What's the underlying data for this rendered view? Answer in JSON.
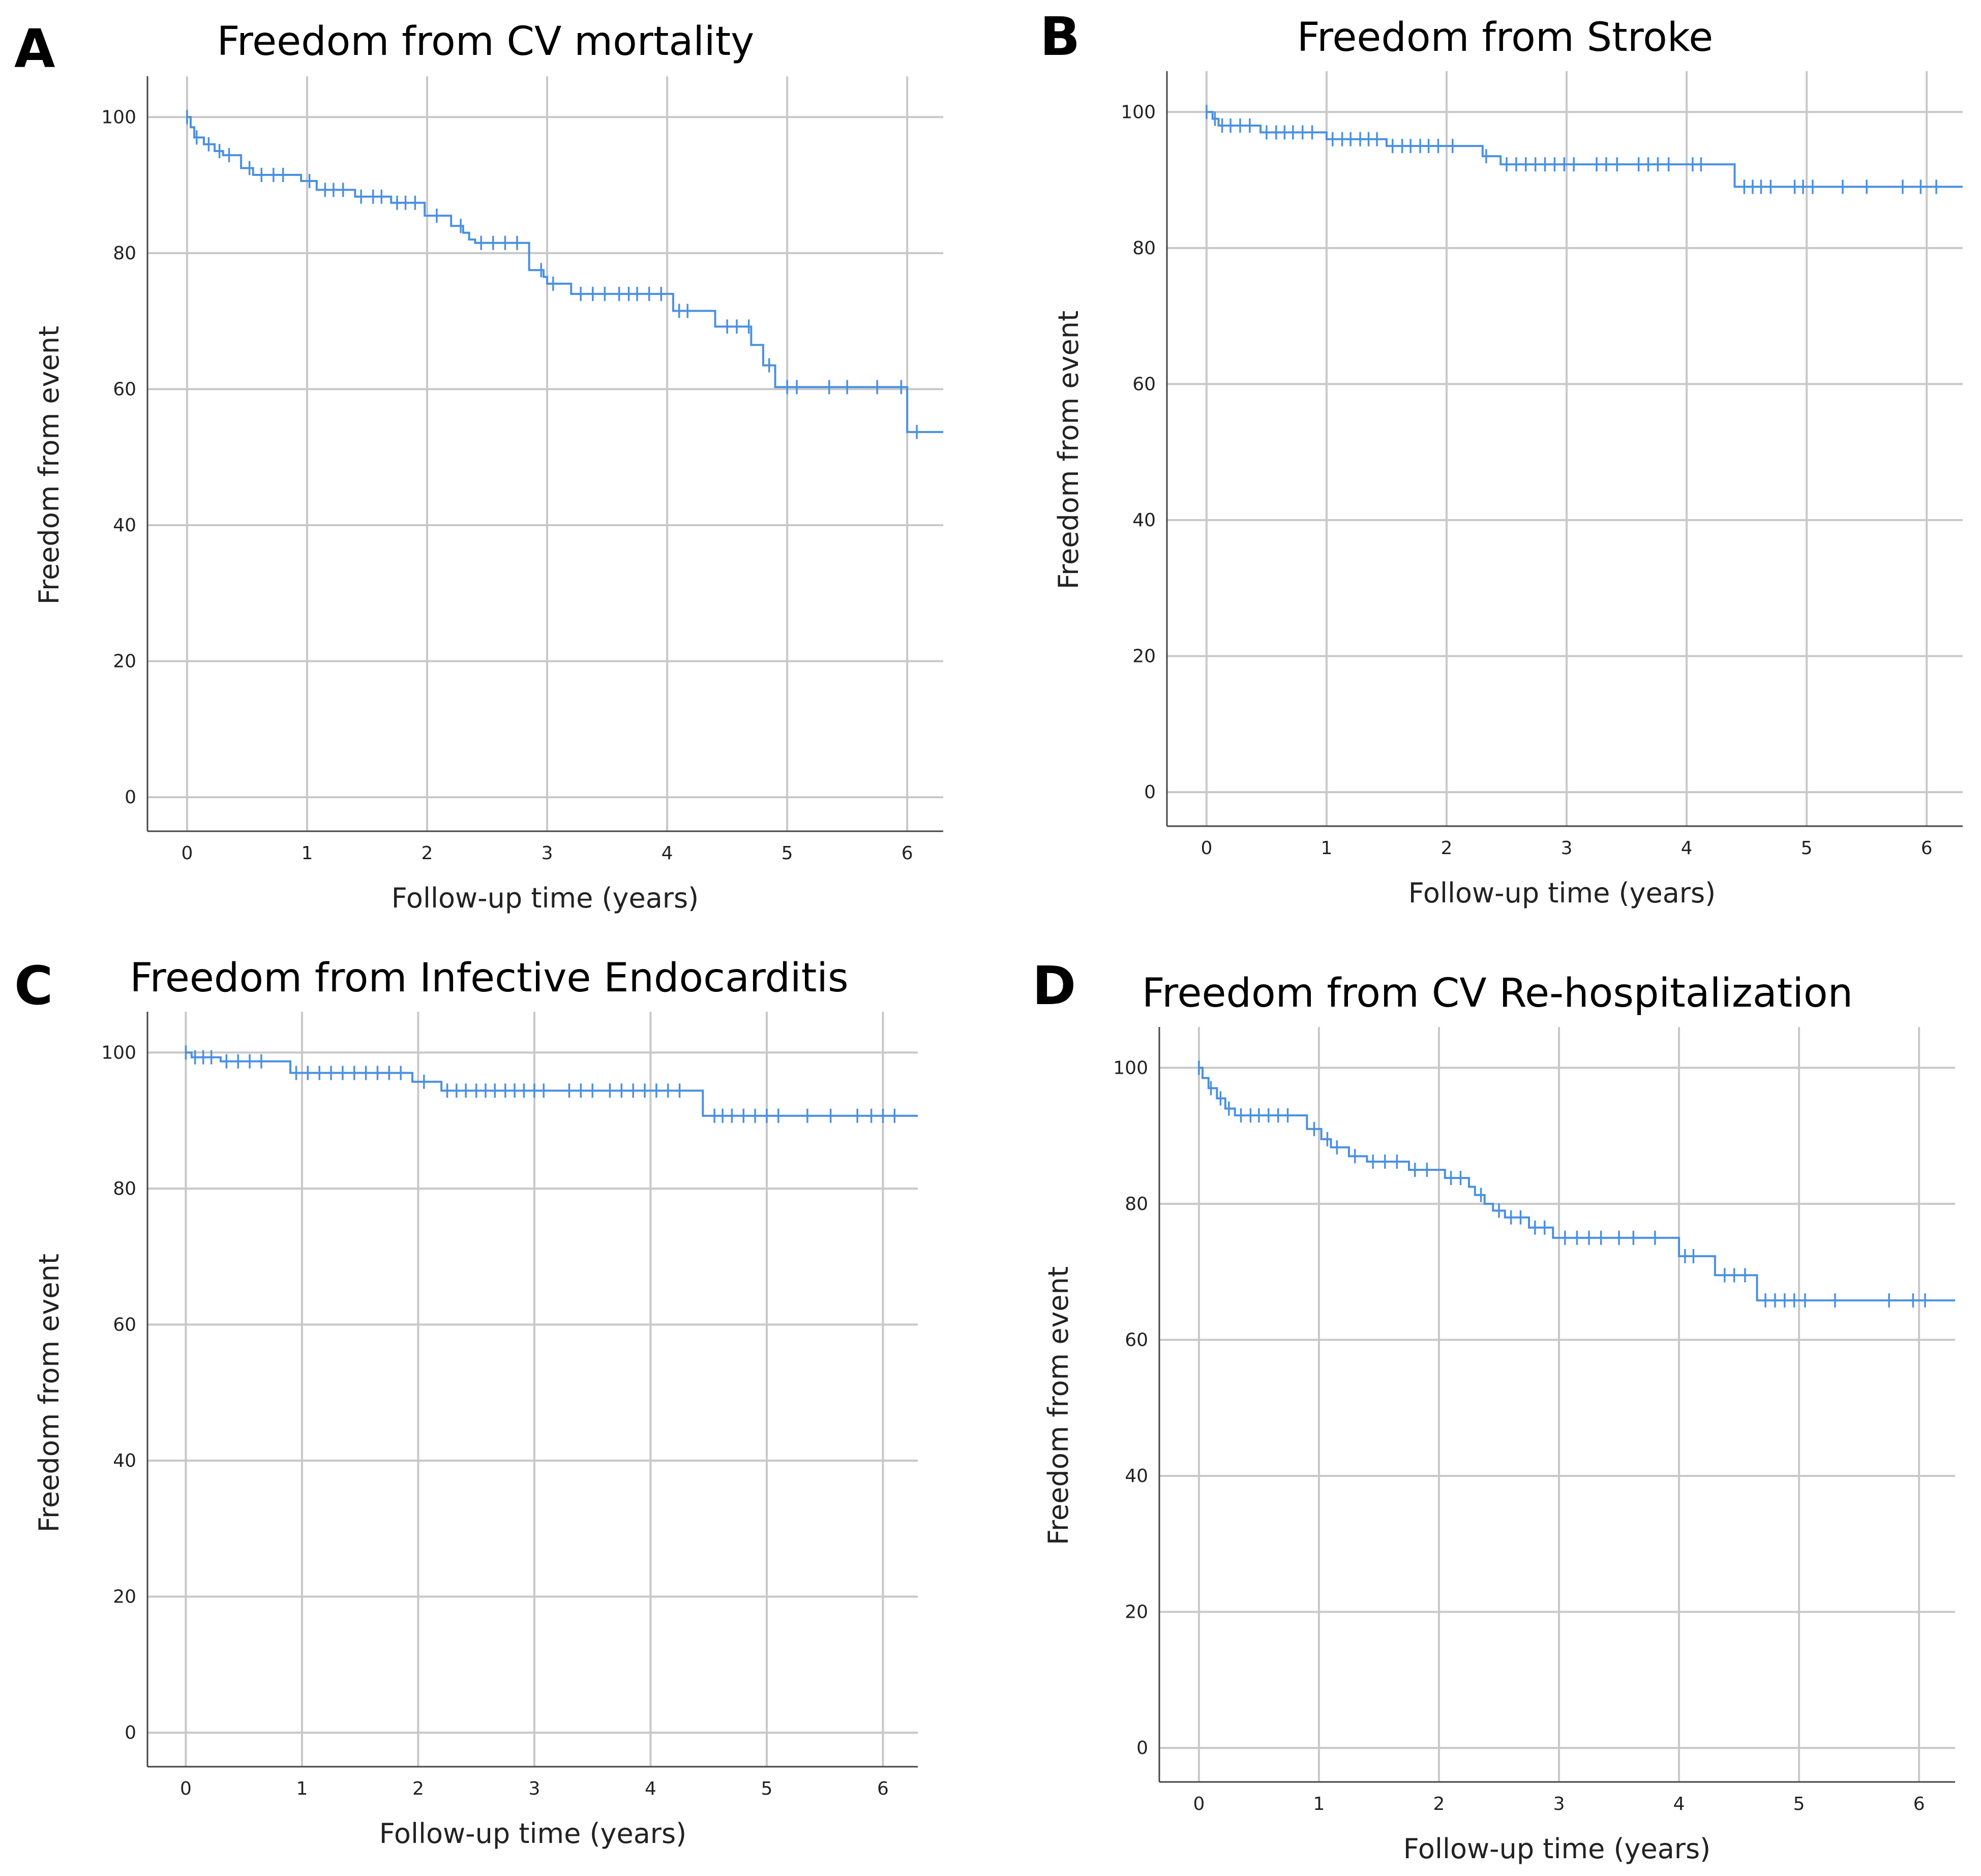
{
  "chart_data": [
    {
      "panel_letter": "A",
      "type": "line",
      "subtype": "kaplan-meier",
      "title": "Freedom from CV mortality",
      "xlabel": "Follow-up time (years)",
      "ylabel": "Freedom from event",
      "x_ticks": [
        "0",
        "1",
        "2",
        "3",
        "4",
        "5",
        "6"
      ],
      "y_ticks": [
        "0",
        "20",
        "40",
        "60",
        "80",
        "100"
      ],
      "xlim": [
        -0.33,
        6.3
      ],
      "ylim": [
        -5,
        106
      ],
      "grid": true,
      "line_color": "#4a90e2",
      "steps": [
        [
          0,
          100
        ],
        [
          0.03,
          98.5
        ],
        [
          0.06,
          97
        ],
        [
          0.14,
          96
        ],
        [
          0.23,
          95
        ],
        [
          0.3,
          94.4
        ],
        [
          0.45,
          92.5
        ],
        [
          0.55,
          91.5
        ],
        [
          0.95,
          90.6
        ],
        [
          1.08,
          89.3
        ],
        [
          1.4,
          88.3
        ],
        [
          1.7,
          87.4
        ],
        [
          1.98,
          85.5
        ],
        [
          2.2,
          84
        ],
        [
          2.3,
          83
        ],
        [
          2.35,
          82
        ],
        [
          2.4,
          81.5
        ],
        [
          2.85,
          77.5
        ],
        [
          2.97,
          76.5
        ],
        [
          3.0,
          75.5
        ],
        [
          3.2,
          74
        ],
        [
          4.05,
          71.5
        ],
        [
          4.4,
          69.2
        ],
        [
          4.7,
          66.5
        ],
        [
          4.8,
          63.5
        ],
        [
          4.9,
          60.3
        ],
        [
          6.0,
          53.7
        ]
      ],
      "x_max": 6.3,
      "censors": [
        [
          0,
          100
        ],
        [
          0.08,
          97
        ],
        [
          0.18,
          96
        ],
        [
          0.27,
          95
        ],
        [
          0.35,
          94.4
        ],
        [
          0.52,
          92.5
        ],
        [
          0.62,
          91.5
        ],
        [
          0.72,
          91.5
        ],
        [
          0.8,
          91.5
        ],
        [
          1.02,
          90.6
        ],
        [
          1.15,
          89.3
        ],
        [
          1.22,
          89.3
        ],
        [
          1.3,
          89.3
        ],
        [
          1.45,
          88.3
        ],
        [
          1.55,
          88.3
        ],
        [
          1.62,
          88.3
        ],
        [
          1.75,
          87.4
        ],
        [
          1.82,
          87.4
        ],
        [
          1.9,
          87.4
        ],
        [
          2.08,
          85.5
        ],
        [
          2.28,
          84
        ],
        [
          2.45,
          81.5
        ],
        [
          2.55,
          81.5
        ],
        [
          2.65,
          81.5
        ],
        [
          2.75,
          81.5
        ],
        [
          2.95,
          77.5
        ],
        [
          3.05,
          75.5
        ],
        [
          3.28,
          74
        ],
        [
          3.38,
          74
        ],
        [
          3.48,
          74
        ],
        [
          3.6,
          74
        ],
        [
          3.68,
          74
        ],
        [
          3.75,
          74
        ],
        [
          3.85,
          74
        ],
        [
          3.95,
          74
        ],
        [
          4.1,
          71.5
        ],
        [
          4.17,
          71.5
        ],
        [
          4.5,
          69.2
        ],
        [
          4.58,
          69.2
        ],
        [
          4.68,
          69.2
        ],
        [
          4.85,
          63.5
        ],
        [
          5.0,
          60.3
        ],
        [
          5.08,
          60.3
        ],
        [
          5.35,
          60.3
        ],
        [
          5.5,
          60.3
        ],
        [
          5.75,
          60.3
        ],
        [
          5.95,
          60.3
        ],
        [
          6.08,
          53.7
        ]
      ]
    },
    {
      "panel_letter": "B",
      "type": "line",
      "subtype": "kaplan-meier",
      "title": "Freedom from Stroke",
      "xlabel": "Follow-up time (years)",
      "ylabel": "Freedom from event",
      "x_ticks": [
        "0",
        "1",
        "2",
        "3",
        "4",
        "5",
        "6"
      ],
      "y_ticks": [
        "0",
        "20",
        "40",
        "60",
        "80",
        "100"
      ],
      "xlim": [
        -0.33,
        6.3
      ],
      "ylim": [
        -5,
        106
      ],
      "grid": true,
      "line_color": "#4a90e2",
      "steps": [
        [
          0,
          100
        ],
        [
          0.05,
          99
        ],
        [
          0.1,
          98
        ],
        [
          0.45,
          97
        ],
        [
          1.0,
          96
        ],
        [
          1.5,
          95
        ],
        [
          2.3,
          93.5
        ],
        [
          2.45,
          92.3
        ],
        [
          4.4,
          89
        ]
      ],
      "x_max": 6.3,
      "censors": [
        [
          0,
          100
        ],
        [
          0.07,
          99
        ],
        [
          0.13,
          98
        ],
        [
          0.2,
          98
        ],
        [
          0.28,
          98
        ],
        [
          0.36,
          98
        ],
        [
          0.5,
          97
        ],
        [
          0.58,
          97
        ],
        [
          0.65,
          97
        ],
        [
          0.72,
          97
        ],
        [
          0.8,
          97
        ],
        [
          0.88,
          97
        ],
        [
          1.05,
          96
        ],
        [
          1.13,
          96
        ],
        [
          1.2,
          96
        ],
        [
          1.28,
          96
        ],
        [
          1.35,
          96
        ],
        [
          1.42,
          96
        ],
        [
          1.55,
          95
        ],
        [
          1.63,
          95
        ],
        [
          1.7,
          95
        ],
        [
          1.78,
          95
        ],
        [
          1.85,
          95
        ],
        [
          1.93,
          95
        ],
        [
          2.05,
          95
        ],
        [
          2.33,
          93.5
        ],
        [
          2.5,
          92.3
        ],
        [
          2.58,
          92.3
        ],
        [
          2.66,
          92.3
        ],
        [
          2.74,
          92.3
        ],
        [
          2.82,
          92.3
        ],
        [
          2.9,
          92.3
        ],
        [
          2.98,
          92.3
        ],
        [
          3.06,
          92.3
        ],
        [
          3.25,
          92.3
        ],
        [
          3.33,
          92.3
        ],
        [
          3.42,
          92.3
        ],
        [
          3.6,
          92.3
        ],
        [
          3.68,
          92.3
        ],
        [
          3.76,
          92.3
        ],
        [
          3.85,
          92.3
        ],
        [
          4.05,
          92.3
        ],
        [
          4.12,
          92.3
        ],
        [
          4.48,
          89
        ],
        [
          4.55,
          89
        ],
        [
          4.62,
          89
        ],
        [
          4.7,
          89
        ],
        [
          4.9,
          89
        ],
        [
          4.97,
          89
        ],
        [
          5.05,
          89
        ],
        [
          5.3,
          89
        ],
        [
          5.5,
          89
        ],
        [
          5.8,
          89
        ],
        [
          5.95,
          89
        ],
        [
          6.08,
          89
        ]
      ]
    },
    {
      "panel_letter": "C",
      "type": "line",
      "subtype": "kaplan-meier",
      "title": "Freedom from Infective Endocarditis",
      "xlabel": "Follow-up time (years)",
      "ylabel": "Freedom from event",
      "x_ticks": [
        "0",
        "1",
        "2",
        "3",
        "4",
        "5",
        "6"
      ],
      "y_ticks": [
        "0",
        "20",
        "40",
        "60",
        "80",
        "100"
      ],
      "xlim": [
        -0.33,
        6.3
      ],
      "ylim": [
        -5,
        106
      ],
      "grid": true,
      "line_color": "#4a90e2",
      "steps": [
        [
          0,
          100
        ],
        [
          0.05,
          99.3
        ],
        [
          0.3,
          98.7
        ],
        [
          0.9,
          97
        ],
        [
          1.95,
          95.7
        ],
        [
          2.2,
          94.4
        ],
        [
          4.45,
          90.7
        ]
      ],
      "x_max": 6.3,
      "censors": [
        [
          0,
          100
        ],
        [
          0.08,
          99.3
        ],
        [
          0.15,
          99.3
        ],
        [
          0.22,
          99.3
        ],
        [
          0.35,
          98.7
        ],
        [
          0.45,
          98.7
        ],
        [
          0.55,
          98.7
        ],
        [
          0.65,
          98.7
        ],
        [
          0.95,
          97
        ],
        [
          1.05,
          97
        ],
        [
          1.15,
          97
        ],
        [
          1.25,
          97
        ],
        [
          1.35,
          97
        ],
        [
          1.45,
          97
        ],
        [
          1.55,
          97
        ],
        [
          1.65,
          97
        ],
        [
          1.75,
          97
        ],
        [
          1.85,
          97
        ],
        [
          2.05,
          95.7
        ],
        [
          2.25,
          94.4
        ],
        [
          2.33,
          94.4
        ],
        [
          2.41,
          94.4
        ],
        [
          2.5,
          94.4
        ],
        [
          2.58,
          94.4
        ],
        [
          2.66,
          94.4
        ],
        [
          2.75,
          94.4
        ],
        [
          2.83,
          94.4
        ],
        [
          2.91,
          94.4
        ],
        [
          3.0,
          94.4
        ],
        [
          3.08,
          94.4
        ],
        [
          3.3,
          94.4
        ],
        [
          3.4,
          94.4
        ],
        [
          3.5,
          94.4
        ],
        [
          3.65,
          94.4
        ],
        [
          3.75,
          94.4
        ],
        [
          3.85,
          94.4
        ],
        [
          3.95,
          94.4
        ],
        [
          4.05,
          94.4
        ],
        [
          4.15,
          94.4
        ],
        [
          4.25,
          94.4
        ],
        [
          4.55,
          90.7
        ],
        [
          4.62,
          90.7
        ],
        [
          4.7,
          90.7
        ],
        [
          4.8,
          90.7
        ],
        [
          4.9,
          90.7
        ],
        [
          5.0,
          90.7
        ],
        [
          5.1,
          90.7
        ],
        [
          5.35,
          90.7
        ],
        [
          5.55,
          90.7
        ],
        [
          5.78,
          90.7
        ],
        [
          5.9,
          90.7
        ],
        [
          6.0,
          90.7
        ],
        [
          6.1,
          90.7
        ]
      ]
    },
    {
      "panel_letter": "D",
      "type": "line",
      "subtype": "kaplan-meier",
      "title": "Freedom from CV Re-hospitalization",
      "xlabel": "Follow-up time (years)",
      "ylabel": "Freedom from event",
      "x_ticks": [
        "0",
        "1",
        "2",
        "3",
        "4",
        "5",
        "6"
      ],
      "y_ticks": [
        "0",
        "20",
        "40",
        "60",
        "80",
        "100"
      ],
      "xlim": [
        -0.33,
        6.3
      ],
      "ylim": [
        -5,
        106
      ],
      "grid": true,
      "line_color": "#4a90e2",
      "steps": [
        [
          0,
          100
        ],
        [
          0.03,
          98.5
        ],
        [
          0.08,
          97
        ],
        [
          0.15,
          95.5
        ],
        [
          0.22,
          94
        ],
        [
          0.3,
          93
        ],
        [
          0.9,
          91
        ],
        [
          1.02,
          89.5
        ],
        [
          1.1,
          88.3
        ],
        [
          1.25,
          87
        ],
        [
          1.4,
          86.2
        ],
        [
          1.75,
          85
        ],
        [
          2.05,
          83.8
        ],
        [
          2.25,
          82.5
        ],
        [
          2.3,
          81.3
        ],
        [
          2.38,
          80
        ],
        [
          2.45,
          79
        ],
        [
          2.55,
          78
        ],
        [
          2.75,
          76.5
        ],
        [
          2.95,
          75
        ],
        [
          4.0,
          72.3
        ],
        [
          4.3,
          69.5
        ],
        [
          4.65,
          65.8
        ]
      ],
      "x_max": 6.3,
      "censors": [
        [
          0,
          100
        ],
        [
          0.1,
          97
        ],
        [
          0.18,
          95.5
        ],
        [
          0.25,
          94
        ],
        [
          0.35,
          93
        ],
        [
          0.43,
          93
        ],
        [
          0.5,
          93
        ],
        [
          0.58,
          93
        ],
        [
          0.66,
          93
        ],
        [
          0.74,
          93
        ],
        [
          0.96,
          91
        ],
        [
          1.07,
          89.5
        ],
        [
          1.15,
          88.3
        ],
        [
          1.3,
          87
        ],
        [
          1.45,
          86.2
        ],
        [
          1.55,
          86.2
        ],
        [
          1.65,
          86.2
        ],
        [
          1.8,
          85
        ],
        [
          1.9,
          85
        ],
        [
          2.1,
          83.8
        ],
        [
          2.18,
          83.8
        ],
        [
          2.35,
          81.3
        ],
        [
          2.5,
          79
        ],
        [
          2.6,
          78
        ],
        [
          2.68,
          78
        ],
        [
          2.8,
          76.5
        ],
        [
          2.88,
          76.5
        ],
        [
          3.05,
          75
        ],
        [
          3.15,
          75
        ],
        [
          3.25,
          75
        ],
        [
          3.35,
          75
        ],
        [
          3.5,
          75
        ],
        [
          3.62,
          75
        ],
        [
          3.8,
          75
        ],
        [
          4.05,
          72.3
        ],
        [
          4.12,
          72.3
        ],
        [
          4.38,
          69.5
        ],
        [
          4.46,
          69.5
        ],
        [
          4.55,
          69.5
        ],
        [
          4.72,
          65.8
        ],
        [
          4.8,
          65.8
        ],
        [
          4.88,
          65.8
        ],
        [
          4.96,
          65.8
        ],
        [
          5.05,
          65.8
        ],
        [
          5.3,
          65.8
        ],
        [
          5.75,
          65.8
        ],
        [
          5.95,
          65.8
        ],
        [
          6.05,
          65.8
        ]
      ]
    }
  ]
}
